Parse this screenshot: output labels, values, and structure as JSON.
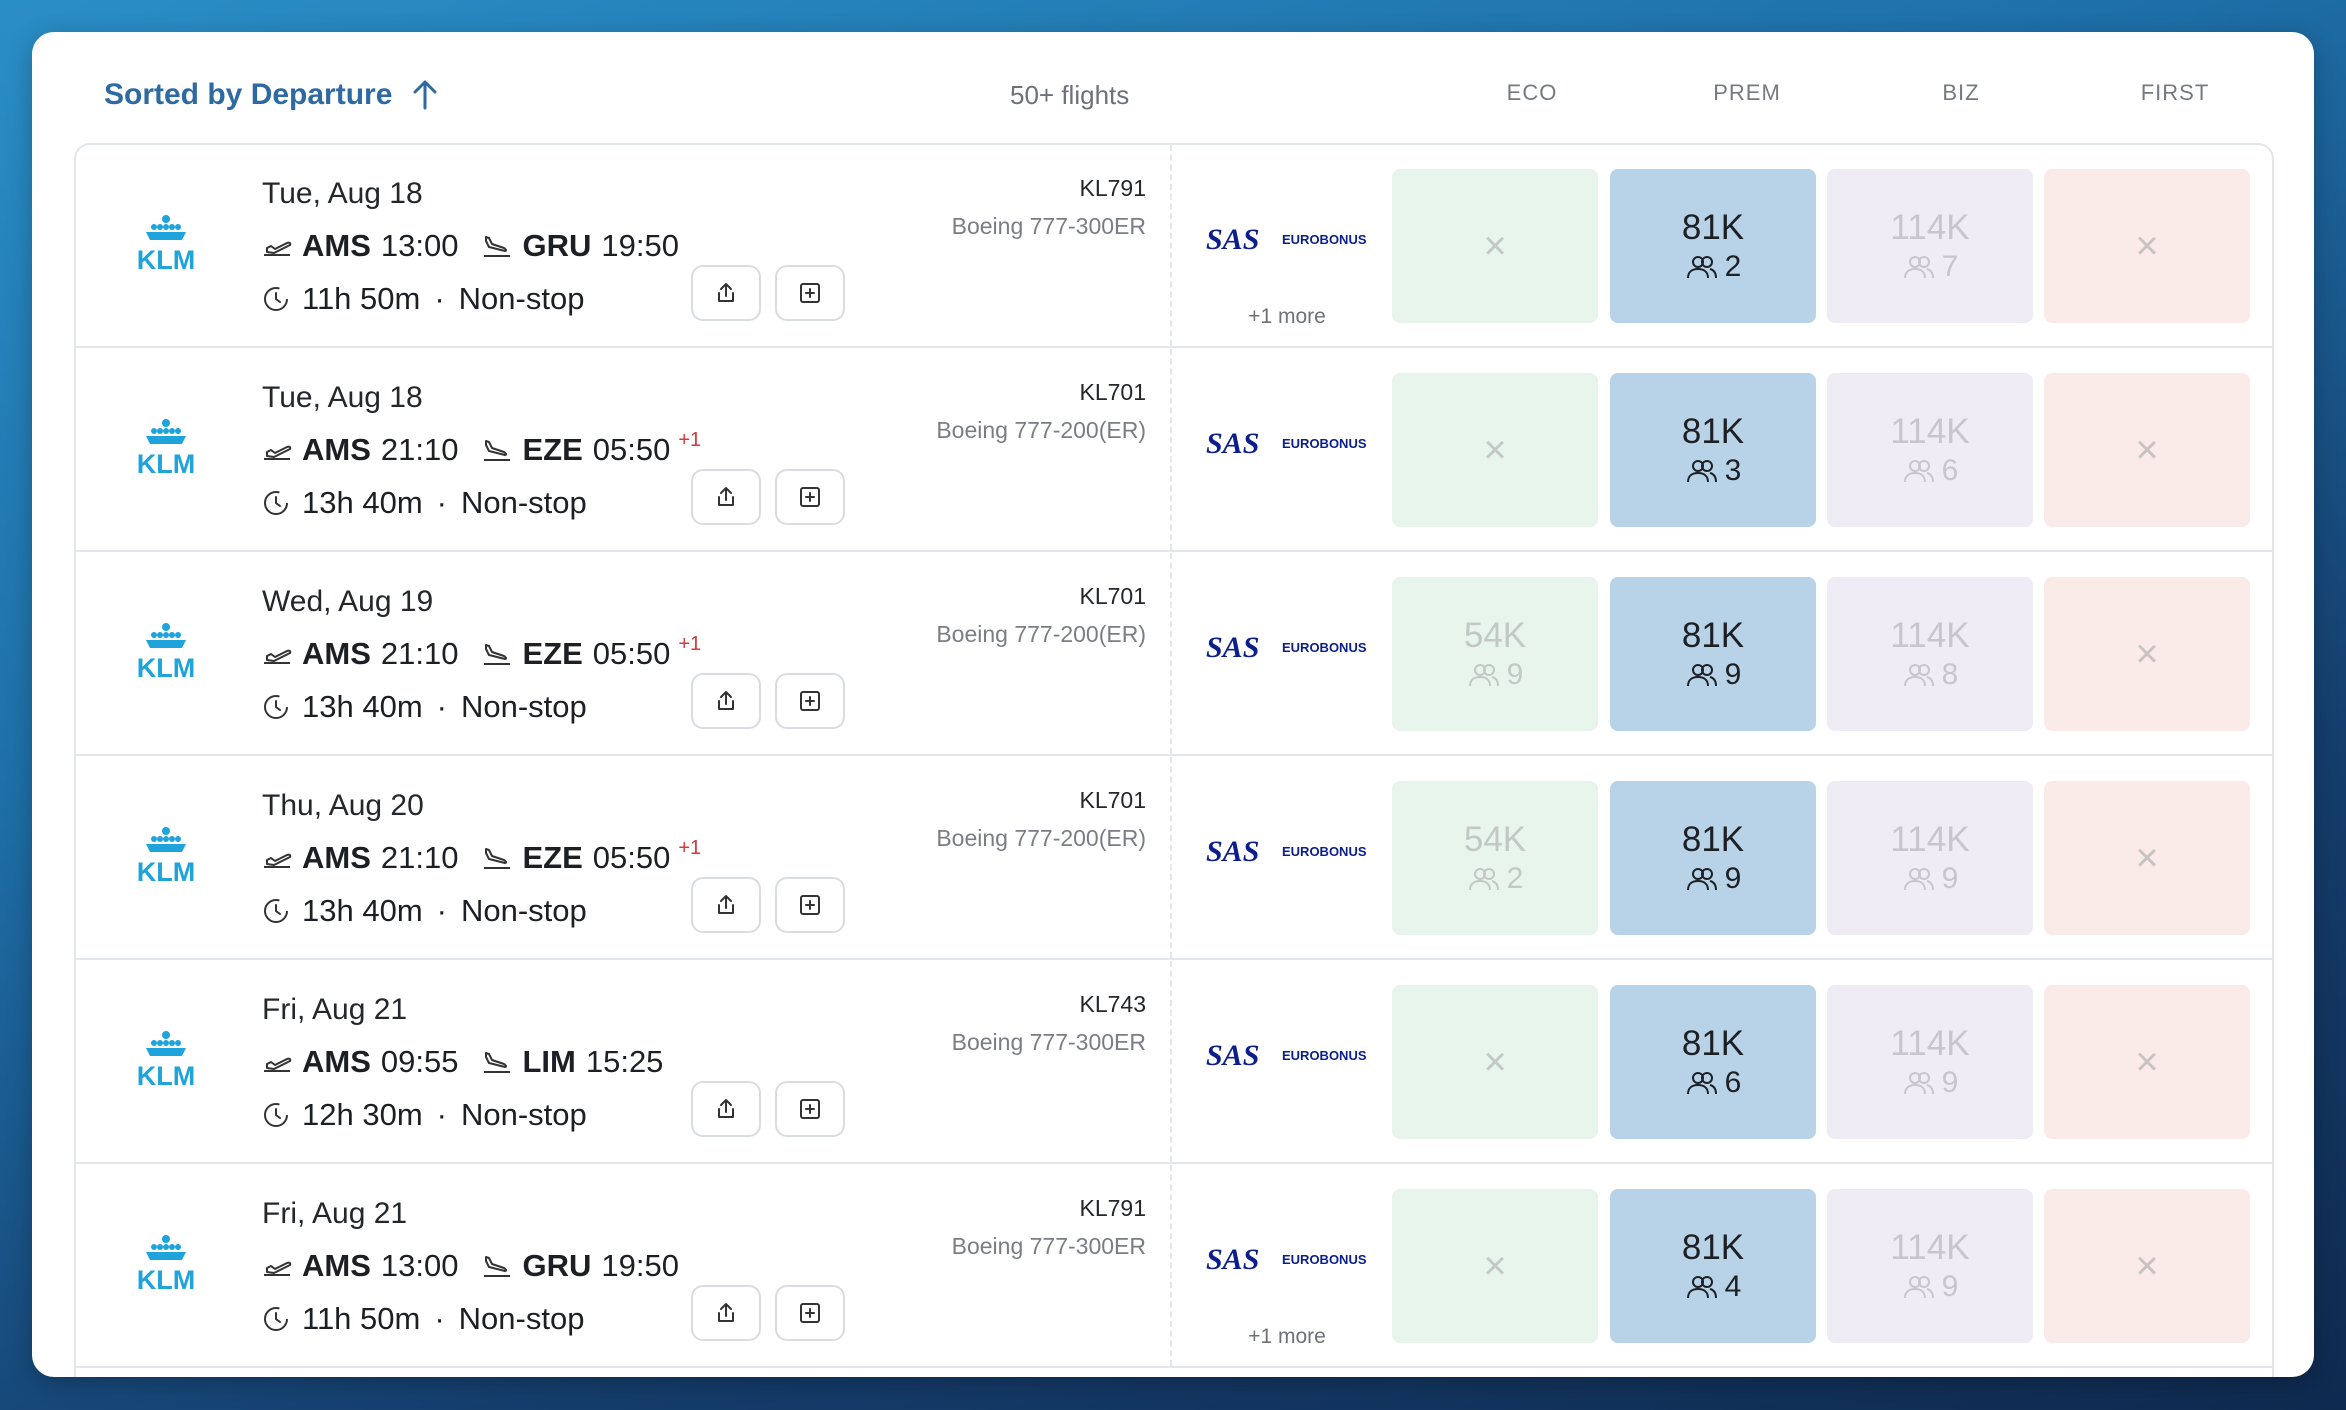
{
  "header": {
    "sort_label": "Sorted by Departure",
    "count": "50+ flights",
    "columns": [
      "ECO",
      "PREM",
      "BIZ",
      "FIRST"
    ]
  },
  "colors": {
    "eco_bg": "#e8f5ec",
    "prem_bg": "#b8d3e8",
    "biz_bg": "#f0ecf5",
    "first_bg": "#faebe9",
    "accent": "#2e6aa2",
    "next_day": "#d23b3b"
  },
  "icons": [
    "sort-arrow-up-icon",
    "takeoff-icon",
    "landing-icon",
    "clock-icon",
    "share-icon",
    "add-icon",
    "seats-icon",
    "klm-logo",
    "sas-eurobonus-logo"
  ],
  "airline": "KLM",
  "program": {
    "name": "SAS",
    "sub": "EUROBONUS"
  },
  "flights": [
    {
      "date": "Tue, Aug 18",
      "origin": "AMS",
      "dep": "13:00",
      "dest": "GRU",
      "arr": "19:50",
      "next_day": "",
      "duration": "11h 50m",
      "stops": "Non-stop",
      "flight_no": "KL791",
      "aircraft": "Boeing 777-300ER",
      "more": "+1 more",
      "eco": {
        "available": false,
        "label": "×"
      },
      "prem": {
        "points": "81K",
        "seats": "2"
      },
      "biz": {
        "points": "114K",
        "seats": "7"
      },
      "first": {
        "available": false,
        "label": "×"
      }
    },
    {
      "date": "Tue, Aug 18",
      "origin": "AMS",
      "dep": "21:10",
      "dest": "EZE",
      "arr": "05:50",
      "next_day": "+1",
      "duration": "13h 40m",
      "stops": "Non-stop",
      "flight_no": "KL701",
      "aircraft": "Boeing 777-200(ER)",
      "more": "",
      "eco": {
        "available": false,
        "label": "×"
      },
      "prem": {
        "points": "81K",
        "seats": "3"
      },
      "biz": {
        "points": "114K",
        "seats": "6"
      },
      "first": {
        "available": false,
        "label": "×"
      }
    },
    {
      "date": "Wed, Aug 19",
      "origin": "AMS",
      "dep": "21:10",
      "dest": "EZE",
      "arr": "05:50",
      "next_day": "+1",
      "duration": "13h 40m",
      "stops": "Non-stop",
      "flight_no": "KL701",
      "aircraft": "Boeing 777-200(ER)",
      "more": "",
      "eco": {
        "points": "54K",
        "seats": "9"
      },
      "prem": {
        "points": "81K",
        "seats": "9"
      },
      "biz": {
        "points": "114K",
        "seats": "8"
      },
      "first": {
        "available": false,
        "label": "×"
      }
    },
    {
      "date": "Thu, Aug 20",
      "origin": "AMS",
      "dep": "21:10",
      "dest": "EZE",
      "arr": "05:50",
      "next_day": "+1",
      "duration": "13h 40m",
      "stops": "Non-stop",
      "flight_no": "KL701",
      "aircraft": "Boeing 777-200(ER)",
      "more": "",
      "eco": {
        "points": "54K",
        "seats": "2"
      },
      "prem": {
        "points": "81K",
        "seats": "9"
      },
      "biz": {
        "points": "114K",
        "seats": "9"
      },
      "first": {
        "available": false,
        "label": "×"
      }
    },
    {
      "date": "Fri, Aug 21",
      "origin": "AMS",
      "dep": "09:55",
      "dest": "LIM",
      "arr": "15:25",
      "next_day": "",
      "duration": "12h 30m",
      "stops": "Non-stop",
      "flight_no": "KL743",
      "aircraft": "Boeing 777-300ER",
      "more": "",
      "eco": {
        "available": false,
        "label": "×"
      },
      "prem": {
        "points": "81K",
        "seats": "6"
      },
      "biz": {
        "points": "114K",
        "seats": "9"
      },
      "first": {
        "available": false,
        "label": "×"
      }
    },
    {
      "date": "Fri, Aug 21",
      "origin": "AMS",
      "dep": "13:00",
      "dest": "GRU",
      "arr": "19:50",
      "next_day": "",
      "duration": "11h 50m",
      "stops": "Non-stop",
      "flight_no": "KL791",
      "aircraft": "Boeing 777-300ER",
      "more": "+1 more",
      "eco": {
        "available": false,
        "label": "×"
      },
      "prem": {
        "points": "81K",
        "seats": "4"
      },
      "biz": {
        "points": "114K",
        "seats": "9"
      },
      "first": {
        "available": false,
        "label": "×"
      }
    }
  ]
}
